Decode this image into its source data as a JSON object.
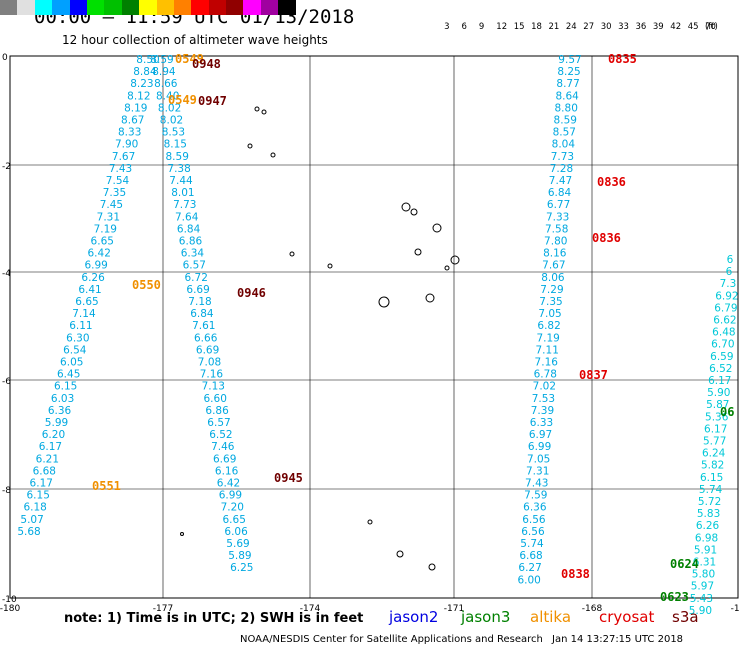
{
  "title": "00:00 – 11:59 UTC 01/13/2018",
  "subtitle": "12 hour collection of altimeter wave heights",
  "legend": {
    "unit": "(ft)",
    "bins": [
      {
        "label": "",
        "color": "#808080"
      },
      {
        "label": "3",
        "color": "#e0e0e0"
      },
      {
        "label": "6",
        "color": "#00ffff"
      },
      {
        "label": "9",
        "color": "#00a0ff"
      },
      {
        "label": "12",
        "color": "#0000ff"
      },
      {
        "label": "15",
        "color": "#00e000"
      },
      {
        "label": "18",
        "color": "#00c000"
      },
      {
        "label": "21",
        "color": "#008000"
      },
      {
        "label": "24",
        "color": "#ffff00"
      },
      {
        "label": "27",
        "color": "#ffc000"
      },
      {
        "label": "30",
        "color": "#ff8000"
      },
      {
        "label": "33",
        "color": "#ff0000"
      },
      {
        "label": "36",
        "color": "#c00000"
      },
      {
        "label": "39",
        "color": "#900000"
      },
      {
        "label": "42",
        "color": "#ff00ff"
      },
      {
        "label": "45",
        "color": "#a000a0"
      },
      {
        "label": "70",
        "color": "#000000"
      }
    ]
  },
  "axes": {
    "lat_ticks": [
      "0",
      "-2",
      "-4",
      "-6",
      "-8",
      "-10"
    ],
    "lon_ticks": [
      "-180",
      "-177",
      "-174",
      "-171",
      "-168",
      "-16"
    ]
  },
  "colors": {
    "swh": "#00a8e0",
    "swh_light": "#00c8d8",
    "altika": "#f09000",
    "cryosat": "#e00000",
    "s3a": "#700000",
    "jason3": "#008000",
    "jason2": "#0000e0"
  },
  "tracks": [
    {
      "name": "track-A",
      "color_key": "swh",
      "start": [
        148,
        63
      ],
      "step": [
        -3.05,
        12.1
      ],
      "values": [
        "8.50",
        "8.84",
        "8.23",
        "8.12",
        "8.19",
        "8.67",
        "8.33",
        "7.90",
        "7.67",
        "7.43",
        "7.54",
        "7.35",
        "7.45",
        "7.31",
        "7.19",
        "6.65",
        "6.42",
        "6.99",
        "6.26",
        "6.41",
        "6.65",
        "7.14",
        "6.11",
        "6.30",
        "6.54",
        "6.05",
        "6.45",
        "6.15",
        "6.03",
        "6.36",
        "5.99",
        "6.20",
        "6.17",
        "6.21",
        "6.68",
        "6.17",
        "6.15",
        "6.18",
        "5.07",
        "5.68"
      ]
    },
    {
      "name": "track-B",
      "color_key": "swh",
      "start": [
        162,
        63
      ],
      "step": [
        1.9,
        12.1
      ],
      "values": [
        "8.59",
        "8.94",
        "8.66",
        "8.40",
        "8.02",
        "8.02",
        "8.53",
        "8.15",
        "8.59",
        "7.38",
        "7.44",
        "8.01",
        "7.73",
        "7.64",
        "6.84",
        "6.86",
        "6.34",
        "6.57",
        "6.72",
        "6.69",
        "7.18",
        "6.84",
        "7.61",
        "6.66",
        "6.69",
        "7.08",
        "7.16",
        "7.13",
        "6.60",
        "6.86",
        "6.57",
        "6.52",
        "7.46",
        "6.69",
        "6.16",
        "6.42",
        "6.99",
        "7.20",
        "6.65",
        "6.06",
        "5.69",
        "5.89",
        "6.25"
      ]
    },
    {
      "name": "track-C",
      "color_key": "swh",
      "start": [
        570,
        63
      ],
      "step": [
        -0.95,
        12.1
      ],
      "values": [
        "9.57",
        "8.25",
        "8.77",
        "8.64",
        "8.80",
        "8.59",
        "8.57",
        "8.04",
        "7.73",
        "7.28",
        "7.47",
        "6.84",
        "6.77",
        "7.33",
        "7.58",
        "7.80",
        "8.16",
        "7.67",
        "8.06",
        "7.29",
        "7.35",
        "7.05",
        "6.82",
        "7.19",
        "7.11",
        "7.16",
        "6.78",
        "7.02",
        "7.53",
        "7.39",
        "6.33",
        "6.97",
        "6.99",
        "7.05",
        "7.31",
        "7.43",
        "7.59",
        "6.36",
        "6.56",
        "6.56",
        "5.74",
        "6.68",
        "6.27",
        "6.00"
      ]
    },
    {
      "name": "track-D",
      "color_key": "swh_light",
      "start": [
        730,
        263
      ],
      "step": [
        -1.02,
        12.1
      ],
      "values": [
        "6",
        "6",
        "7.3",
        "6.92",
        "6.79",
        "6.62",
        "6.48",
        "6.70",
        "6.59",
        "6.52",
        "6.17",
        "5.90",
        "5.87",
        "5.36",
        "6.17",
        "5.77",
        "6.24",
        "5.82",
        "6.15",
        "5.74",
        "5.72",
        "5.83",
        "6.26",
        "6.98",
        "5.91",
        "6.31",
        "5.80",
        "5.97",
        "5.43",
        "5.90"
      ]
    }
  ],
  "pass_ids": [
    {
      "id": "0549",
      "color_key": "altika",
      "at": [
        175,
        63
      ]
    },
    {
      "id": "0948",
      "color_key": "s3a",
      "at": [
        192,
        68
      ]
    },
    {
      "id": "0549",
      "color_key": "altika",
      "at": [
        168,
        104
      ]
    },
    {
      "id": "0947",
      "color_key": "s3a",
      "at": [
        198,
        105
      ]
    },
    {
      "id": "0550",
      "color_key": "altika",
      "at": [
        132,
        289
      ]
    },
    {
      "id": "0946",
      "color_key": "s3a",
      "at": [
        237,
        297
      ]
    },
    {
      "id": "0551",
      "color_key": "altika",
      "at": [
        92,
        490
      ]
    },
    {
      "id": "0945",
      "color_key": "s3a",
      "at": [
        274,
        482
      ]
    },
    {
      "id": "0835",
      "color_key": "cryosat",
      "at": [
        608,
        63
      ]
    },
    {
      "id": "0836",
      "color_key": "cryosat",
      "at": [
        597,
        186
      ]
    },
    {
      "id": "0836",
      "color_key": "cryosat",
      "at": [
        592,
        242
      ]
    },
    {
      "id": "0837",
      "color_key": "cryosat",
      "at": [
        579,
        379
      ]
    },
    {
      "id": "0838",
      "color_key": "cryosat",
      "at": [
        561,
        578
      ]
    },
    {
      "id": "0624",
      "color_key": "jason3",
      "at": [
        670,
        568
      ]
    },
    {
      "id": "0623",
      "color_key": "jason3",
      "at": [
        660,
        601
      ]
    },
    {
      "id": "06",
      "color_key": "jason3",
      "at": [
        720,
        416
      ]
    }
  ],
  "note": "note:  1) Time is in UTC;  2) SWH is in feet",
  "missions": [
    {
      "label": "jason2",
      "color_key": "jason2"
    },
    {
      "label": "jason3",
      "color_key": "jason3"
    },
    {
      "label": "altika",
      "color_key": "altika"
    },
    {
      "label": "cryosat",
      "color_key": "cryosat"
    },
    {
      "label": "s3a",
      "color_key": "s3a"
    }
  ],
  "credit": "NOAA/NESDIS Center for Satellite Applications and Research",
  "timestamp": "Jan 14 13:27:15 UTC 2018"
}
